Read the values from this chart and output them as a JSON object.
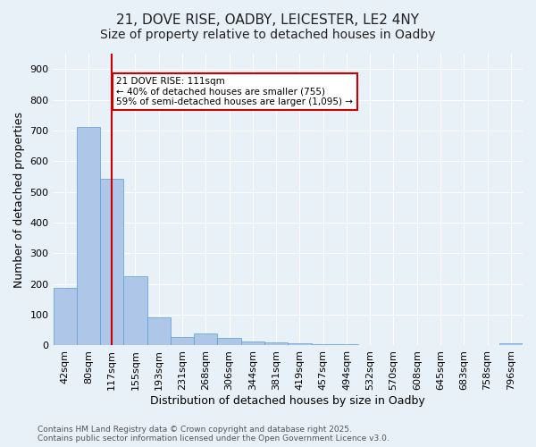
{
  "title_line1": "21, DOVE RISE, OADBY, LEICESTER, LE2 4NY",
  "title_line2": "Size of property relative to detached houses in Oadby",
  "xlabel": "Distribution of detached houses by size in Oadby",
  "ylabel": "Number of detached properties",
  "bar_values": [
    189,
    711,
    543,
    224,
    91,
    27,
    39,
    25,
    14,
    10,
    8,
    4,
    3,
    2,
    1,
    0,
    0,
    0,
    0,
    7
  ],
  "bin_labels": [
    "42sqm",
    "80sqm",
    "117sqm",
    "155sqm",
    "193sqm",
    "231sqm",
    "268sqm",
    "306sqm",
    "344sqm",
    "381sqm",
    "419sqm",
    "457sqm",
    "494sqm",
    "532sqm",
    "570sqm",
    "608sqm",
    "645sqm",
    "683sqm",
    "758sqm",
    "796sqm"
  ],
  "bar_color": "#aec6e8",
  "bar_edge_color": "#5a9fd4",
  "background_color": "#e8f0f8",
  "grid_color": "#ffffff",
  "red_line_x": 2,
  "annotation_text": "21 DOVE RISE: 111sqm\n← 40% of detached houses are smaller (755)\n59% of semi-detached houses are larger (1,095) →",
  "annotation_box_color": "#ffffff",
  "annotation_box_edge": "#cc0000",
  "ylim": [
    0,
    950
  ],
  "yticks": [
    0,
    100,
    200,
    300,
    400,
    500,
    600,
    700,
    800,
    900
  ],
  "footer_text": "Contains HM Land Registry data © Crown copyright and database right 2025.\nContains public sector information licensed under the Open Government Licence v3.0.",
  "title_fontsize": 11,
  "subtitle_fontsize": 10,
  "tick_fontsize": 8,
  "label_fontsize": 9
}
